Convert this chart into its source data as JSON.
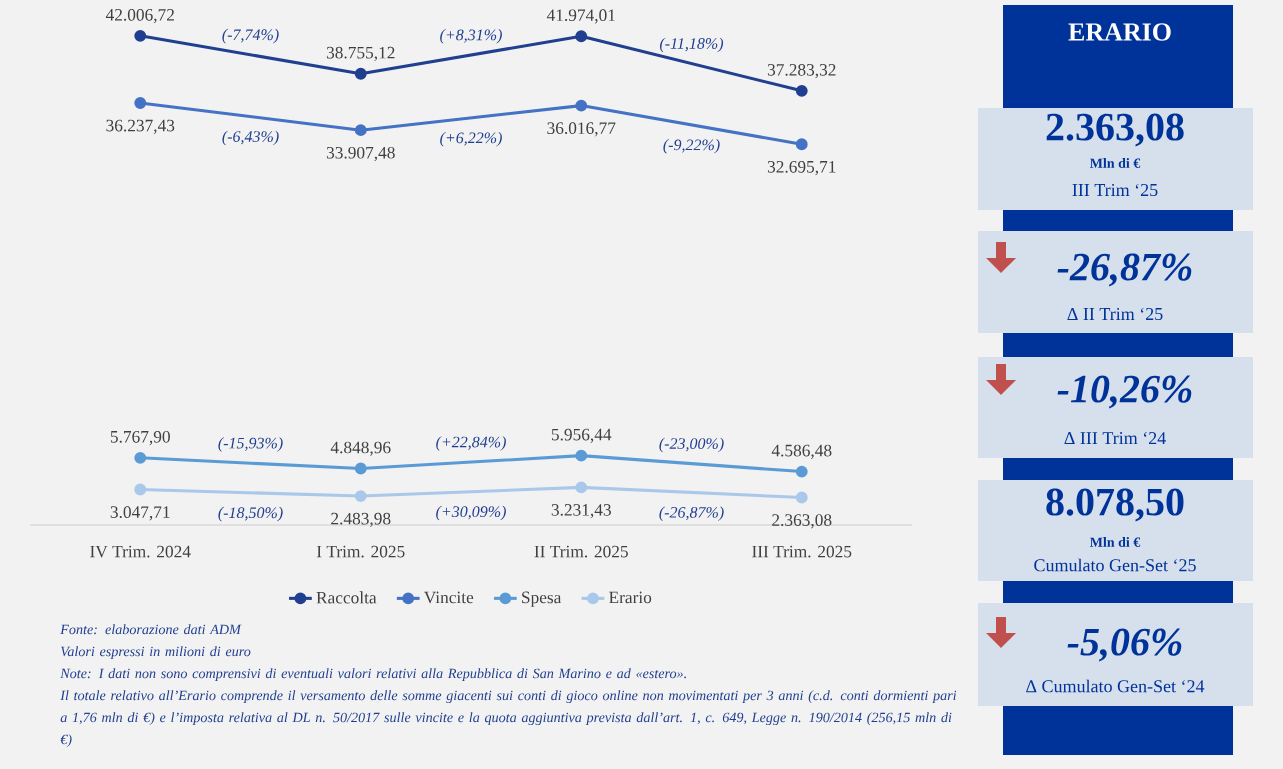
{
  "chart_data": [
    {
      "type": "line",
      "categories": [
        "IV Trim. 2024",
        "I Trim. 2025",
        "II Trim. 2025",
        "III Trim. 2025"
      ],
      "ylim": [
        0,
        45000
      ],
      "legend": "bottom",
      "marker": "circle",
      "series": [
        {
          "name": "Raccolta",
          "color": "#203f91",
          "values": [
            42006.72,
            38755.12,
            41974.01,
            37283.32
          ],
          "value_labels": [
            "42.006,72",
            "38.755,12",
            "41.974,01",
            "37.283,32"
          ]
        },
        {
          "name": "Vincite",
          "color": "#4472c4",
          "values": [
            36237.43,
            33907.48,
            36016.77,
            32695.71
          ],
          "value_labels": [
            "36.237,43",
            "33.907,48",
            "36.016,77",
            "32.695,71"
          ]
        },
        {
          "name": "Spesa",
          "color": "#5b9bd5",
          "values": [
            5767.9,
            4848.96,
            5956.44,
            4586.48
          ],
          "value_labels": [
            "5.767,90",
            "4.848,96",
            "5.956,44",
            "4.586,48"
          ]
        },
        {
          "name": "Erario",
          "color": "#a9c8ea",
          "values": [
            3047.71,
            2483.98,
            3231.43,
            2363.08
          ],
          "value_labels": [
            "3.047,71",
            "2.483,98",
            "3.231,43",
            "2.363,08"
          ]
        }
      ],
      "annotations": [
        "(-7,74%)",
        "(+8,31%)",
        "(-11,18%)",
        "(-6,43%)",
        "(+6,22%)",
        "(-9,22%)",
        "(-15,93%)",
        "(+22,84%)",
        "(-23,00%)",
        "(-18,50%)",
        "(+30,09%)",
        "(-26,87%)",
        "Fonte: elaborazione dati ADM",
        "Valori espressi in milioni di euro",
        "Note: I dati non sono comprensivi di eventuali valori relativi alla Repubblica di San Marino e ad «estero».",
        "Il totale relativo all’Erario comprende il versamento delle somme giacenti sui conti di gioco online non movimentati per 3 anni (c.d. conti dormienti pari a 1,76 mln di €) e l’imposta relativa al DL n. 50/2017 sulle vincite e la quota aggiuntiva prevista dall’art. 1, c. 649, Legge n. 190/2014 (256,15 mln di €)"
      ]
    },
    {
      "type": "other",
      "title": "ERARIO",
      "annotations": [
        "2.363,08",
        "Mln di €",
        "III Trim ‘25",
        "-26,87%",
        "Δ II Trim ‘25",
        "-10,26%",
        "Δ III Trim ‘24",
        "8.078,50",
        "Mln di €",
        "Cumulato Gen-Set ‘25",
        "-5,06%",
        "Δ Cumulato Gen-Set ‘24"
      ]
    }
  ]
}
